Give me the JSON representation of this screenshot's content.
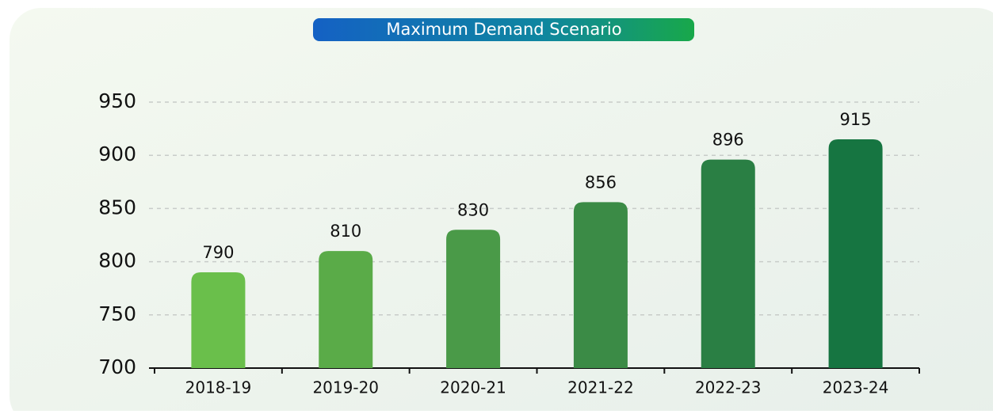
{
  "chart_data": {
    "type": "bar",
    "title": "Maximum Demand Scenario",
    "categories": [
      "2018-19",
      "2019-20",
      "2020-21",
      "2021-22",
      "2022-23",
      "2023-24"
    ],
    "values": [
      790,
      810,
      830,
      856,
      896,
      915
    ],
    "colors": [
      "#6abf4b",
      "#5aab48",
      "#4a9a48",
      "#3b8b46",
      "#2a7f44",
      "#167541"
    ],
    "ylim": [
      700,
      950
    ],
    "yticks": [
      700,
      750,
      800,
      850,
      900,
      950
    ],
    "grid": true
  }
}
